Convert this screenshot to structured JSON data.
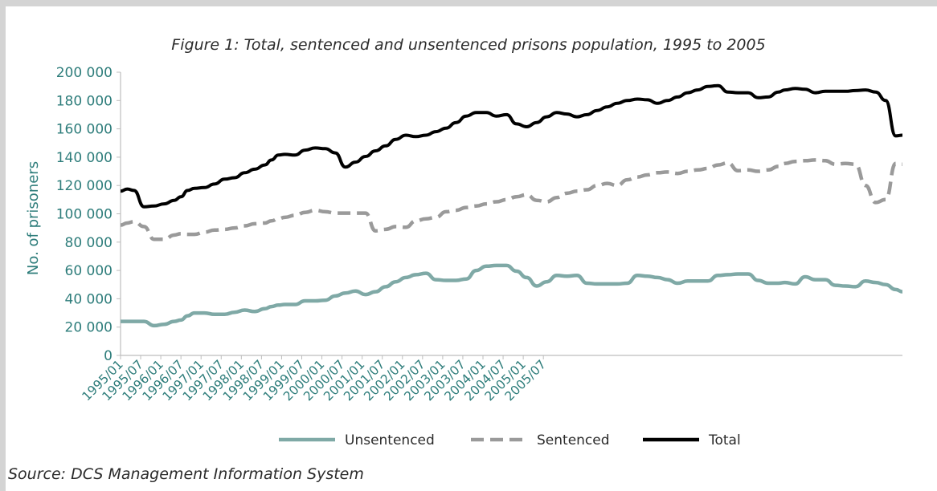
{
  "chart_data": {
    "type": "line",
    "title": "Figure 1: Total, sentenced and unsentenced prisons population, 1995 to 2005",
    "xlabel": "",
    "ylabel": "No. of prisoners",
    "ylim": [
      0,
      200000
    ],
    "yticks": [
      "0",
      "20 000",
      "40 000",
      "60 000",
      "80 000",
      "100 000",
      "120 000",
      "140 000",
      "160 000",
      "180 000",
      "200 000"
    ],
    "xtick_labels": [
      "1995/01",
      "1995/07",
      "1996/01",
      "1996/07",
      "1997/01",
      "1997/07",
      "1998/01",
      "1998/07",
      "1999/01",
      "1999/07",
      "2000/01",
      "2000/07",
      "2001/01",
      "2001/07",
      "2002/01",
      "2002/07",
      "2003/01",
      "2003/07",
      "2004/01",
      "2004/07",
      "2005/01",
      "2005/07"
    ],
    "x_months": [
      0,
      2,
      4,
      7,
      10,
      13,
      16,
      18,
      20,
      22,
      25,
      28,
      31,
      34,
      37,
      40,
      43,
      45,
      47,
      49,
      52,
      55,
      58,
      61,
      64,
      67,
      70,
      73,
      76,
      79,
      82,
      85,
      88,
      91,
      94,
      97,
      100,
      103,
      106,
      109,
      112,
      115,
      118,
      121,
      124,
      127,
      130,
      133,
      136,
      139,
      142,
      145,
      148,
      151,
      154,
      157,
      160,
      163,
      166,
      169,
      172,
      175,
      178,
      181,
      184,
      187,
      190,
      193,
      196,
      198,
      201,
      204,
      207,
      210,
      213,
      216,
      219,
      222,
      225,
      228,
      231,
      233
    ],
    "series": [
      {
        "name": "Unsentenced",
        "color": "#7fa9a6",
        "dash": "solid",
        "values": [
          24000,
          24000,
          24000,
          24000,
          21000,
          22000,
          24000,
          25000,
          28000,
          30000,
          30000,
          29000,
          29000,
          30500,
          32000,
          31000,
          33000,
          34500,
          35500,
          36000,
          36000,
          38500,
          38500,
          39000,
          42000,
          44000,
          45500,
          43000,
          45000,
          48500,
          52000,
          55000,
          57000,
          58000,
          53500,
          53000,
          53000,
          54000,
          60000,
          63000,
          63500,
          63500,
          59500,
          55000,
          49000,
          52000,
          56500,
          56000,
          56500,
          51000,
          50500,
          50500,
          50500,
          51000,
          56500,
          56000,
          55000,
          53500,
          51000,
          52500,
          52500,
          52500,
          56500,
          57000,
          57500,
          57500,
          53000,
          51000,
          51000,
          51500,
          50500,
          55500,
          53500,
          53500,
          49500,
          49000,
          48500,
          52500,
          51500,
          50000,
          46500,
          45000
        ]
      },
      {
        "name": "Sentenced",
        "color": "#9a9a9a",
        "dash": "dashed",
        "values": [
          92000,
          93500,
          94500,
          91000,
          82000,
          82000,
          85000,
          86000,
          85500,
          85500,
          87000,
          88500,
          89000,
          90000,
          91500,
          93000,
          93500,
          95000,
          96500,
          97500,
          99000,
          101000,
          102500,
          101500,
          100500,
          100500,
          100500,
          100500,
          88000,
          89000,
          91000,
          90500,
          95000,
          96500,
          97500,
          101500,
          102500,
          104500,
          105500,
          107000,
          108500,
          110000,
          112000,
          113500,
          109500,
          108500,
          111500,
          114500,
          116000,
          117000,
          120000,
          121500,
          120000,
          124000,
          126000,
          127500,
          129000,
          129500,
          128500,
          130000,
          131000,
          132000,
          134500,
          136000,
          130500,
          131000,
          130000,
          131000,
          133500,
          135500,
          137000,
          137500,
          138000,
          137500,
          135000,
          135500,
          135000,
          120000,
          108000,
          110000,
          135500,
          135000
        ]
      },
      {
        "name": "Total",
        "color": "#000000",
        "dash": "solid",
        "values": [
          116000,
          117500,
          116500,
          105000,
          105500,
          107000,
          109500,
          112000,
          116500,
          118000,
          118500,
          121000,
          124500,
          125500,
          129000,
          131500,
          134500,
          138000,
          141500,
          142000,
          141500,
          145000,
          146500,
          146000,
          143000,
          133000,
          136500,
          140500,
          144500,
          148000,
          152500,
          155500,
          154500,
          155500,
          158000,
          160500,
          164500,
          169000,
          171500,
          171500,
          169000,
          170000,
          163500,
          161500,
          164500,
          168500,
          171500,
          170500,
          168500,
          170000,
          173000,
          175500,
          178000,
          180000,
          181000,
          180500,
          178000,
          180000,
          182500,
          185500,
          187500,
          190000,
          190500,
          186000,
          185500,
          185500,
          182000,
          182500,
          186000,
          187500,
          188500,
          188000,
          185500,
          186500,
          186500,
          186500,
          187000,
          187500,
          186000,
          180000,
          155000,
          155500
        ]
      }
    ],
    "legend": [
      "Unsentenced",
      "Sentenced",
      "Total"
    ],
    "legend_position": "bottom",
    "grid": false
  },
  "source": "Source: DCS Management Information System",
  "colors": {
    "axis_text": "#2e7d7b",
    "frame": "#d4d4d4"
  }
}
